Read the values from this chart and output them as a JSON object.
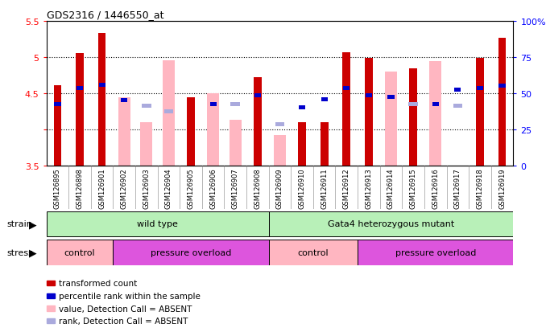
{
  "title": "GDS2316 / 1446550_at",
  "samples": [
    "GSM126895",
    "GSM126898",
    "GSM126901",
    "GSM126902",
    "GSM126903",
    "GSM126904",
    "GSM126905",
    "GSM126906",
    "GSM126907",
    "GSM126908",
    "GSM126909",
    "GSM126910",
    "GSM126911",
    "GSM126912",
    "GSM126913",
    "GSM126914",
    "GSM126915",
    "GSM126916",
    "GSM126917",
    "GSM126918",
    "GSM126919"
  ],
  "red_values": [
    4.61,
    5.06,
    5.33,
    null,
    null,
    null,
    4.44,
    null,
    null,
    4.72,
    null,
    4.1,
    4.1,
    5.07,
    4.99,
    null,
    4.84,
    null,
    null,
    4.99,
    5.27
  ],
  "pink_values": [
    null,
    null,
    null,
    4.44,
    4.1,
    4.95,
    null,
    4.5,
    4.13,
    null,
    3.92,
    null,
    null,
    null,
    null,
    4.8,
    null,
    4.94,
    null,
    null,
    null
  ],
  "blue_values": [
    4.35,
    4.57,
    4.62,
    4.4,
    null,
    null,
    null,
    4.35,
    null,
    4.47,
    null,
    4.3,
    4.42,
    4.57,
    4.47,
    4.45,
    null,
    4.35,
    4.55,
    4.57,
    4.6
  ],
  "light_blue_values": [
    null,
    null,
    null,
    null,
    4.33,
    4.25,
    null,
    null,
    4.35,
    null,
    4.07,
    null,
    null,
    null,
    null,
    null,
    4.35,
    null,
    4.33,
    null,
    null
  ],
  "ylim": [
    3.5,
    5.5
  ],
  "dotted_lines": [
    4.0,
    4.5,
    5.0
  ],
  "red_color": "#CC0000",
  "pink_color": "#FFB6C1",
  "blue_color": "#0000CC",
  "light_blue_color": "#AAAADD",
  "strain_green_light": "#B8F0B8",
  "strain_green_dark": "#50DD50",
  "stress_pink": "#FFB6C1",
  "stress_purple": "#DD55DD",
  "gray_bg": "#E0E0E0",
  "strain_data": [
    {
      "label": "wild type",
      "start": 0,
      "end": 10
    },
    {
      "label": "Gata4 heterozygous mutant",
      "start": 10,
      "end": 21
    }
  ],
  "stress_data": [
    {
      "label": "control",
      "start": 0,
      "end": 3,
      "type": "pink"
    },
    {
      "label": "pressure overload",
      "start": 3,
      "end": 10,
      "type": "purple"
    },
    {
      "label": "control",
      "start": 10,
      "end": 14,
      "type": "pink"
    },
    {
      "label": "pressure overload",
      "start": 14,
      "end": 21,
      "type": "purple"
    }
  ],
  "legend_labels": [
    "transformed count",
    "percentile rank within the sample",
    "value, Detection Call = ABSENT",
    "rank, Detection Call = ABSENT"
  ],
  "legend_colors": [
    "#CC0000",
    "#0000CC",
    "#FFB6C1",
    "#AAAADD"
  ]
}
